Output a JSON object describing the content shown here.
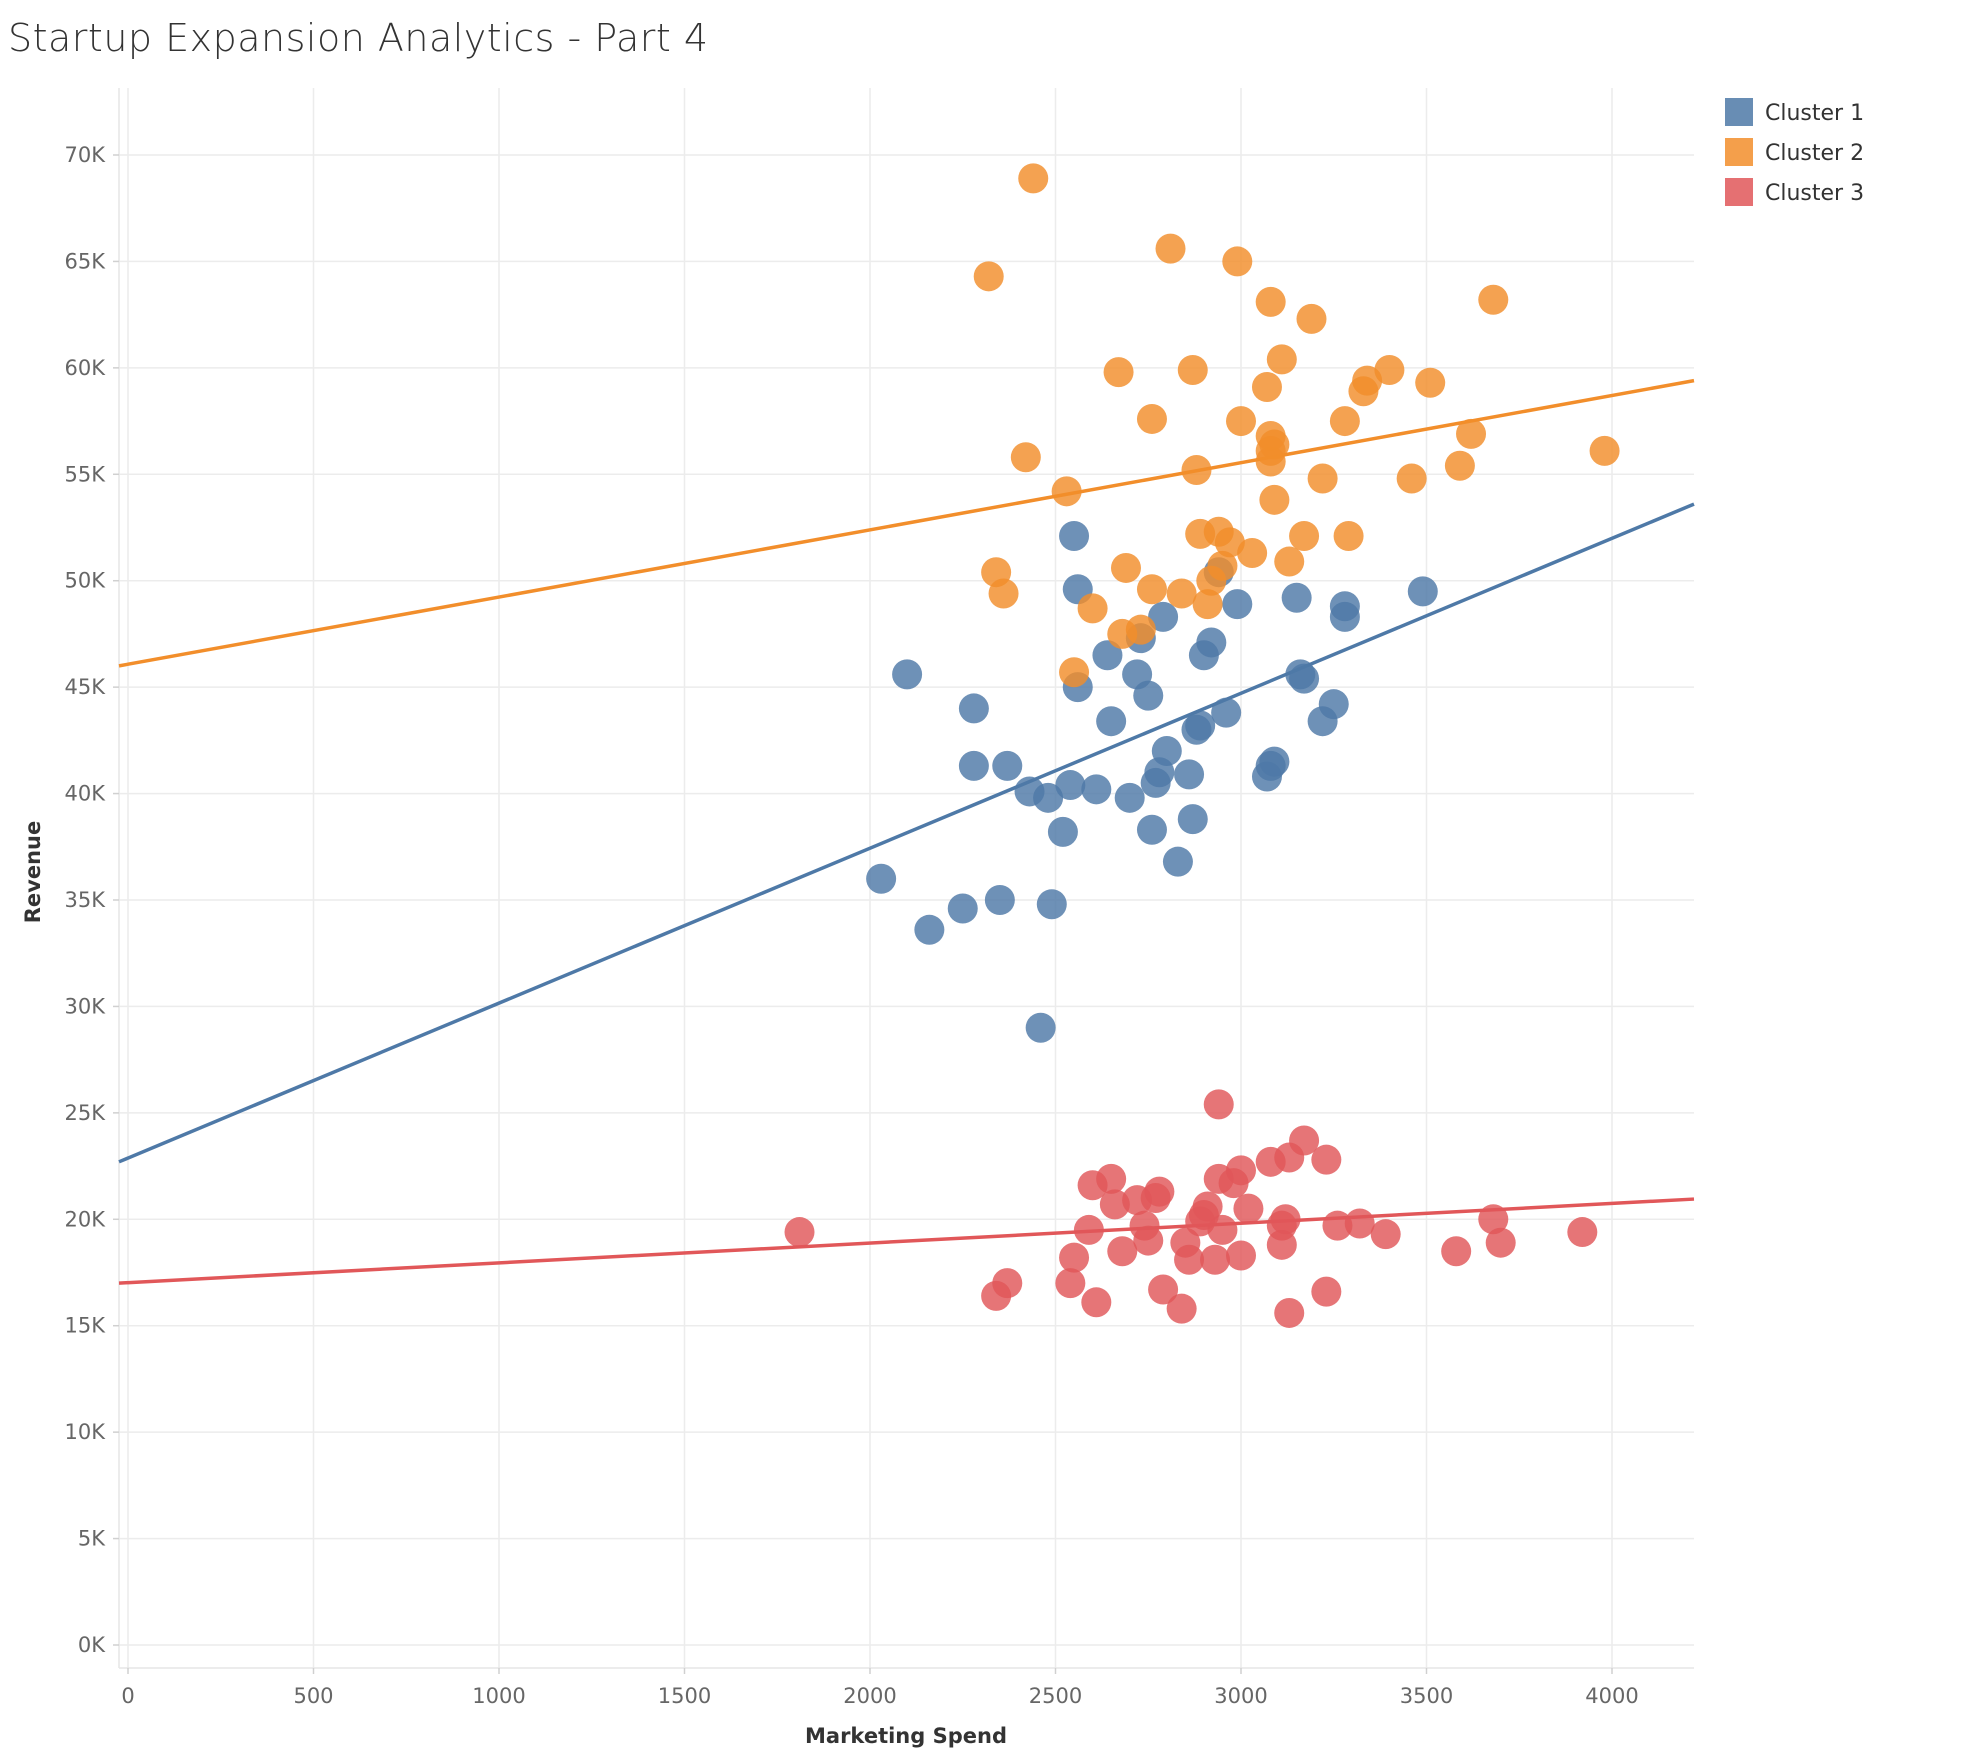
{
  "chart_data": {
    "type": "scatter",
    "title": "Startup Expansion Analytics - Part 4",
    "xlabel": "Marketing Spend",
    "ylabel": "Revenue",
    "xlim": [
      0,
      4220
    ],
    "ylim": [
      0,
      72000
    ],
    "x_ticks": [
      0,
      500,
      1000,
      1500,
      2000,
      2500,
      3000,
      3500,
      4000
    ],
    "x_tick_labels": [
      "0",
      "500",
      "1000",
      "1500",
      "2000",
      "2500",
      "3000",
      "3500",
      "4000"
    ],
    "y_ticks": [
      0,
      5000,
      10000,
      15000,
      20000,
      25000,
      30000,
      35000,
      40000,
      45000,
      50000,
      55000,
      60000,
      65000,
      70000
    ],
    "y_tick_labels": [
      "0K",
      "5K",
      "10K",
      "15K",
      "20K",
      "25K",
      "30K",
      "35K",
      "40K",
      "45K",
      "50K",
      "55K",
      "60K",
      "65K",
      "70K"
    ],
    "grid": true,
    "legend_position": "top-right",
    "series": [
      {
        "name": "Cluster 1",
        "color": "#4e79a7",
        "trendline": {
          "x": [
            0,
            4220
          ],
          "y": [
            22700,
            53600
          ]
        },
        "points": [
          [
            2030,
            36000
          ],
          [
            2100,
            45600
          ],
          [
            2160,
            33600
          ],
          [
            2250,
            34600
          ],
          [
            2280,
            44000
          ],
          [
            2280,
            41300
          ],
          [
            2350,
            35000
          ],
          [
            2370,
            41300
          ],
          [
            2430,
            40100
          ],
          [
            2460,
            29000
          ],
          [
            2480,
            39800
          ],
          [
            2490,
            34800
          ],
          [
            2520,
            38200
          ],
          [
            2540,
            40400
          ],
          [
            2550,
            52100
          ],
          [
            2560,
            49600
          ],
          [
            2560,
            45000
          ],
          [
            2610,
            40200
          ],
          [
            2640,
            46500
          ],
          [
            2650,
            43400
          ],
          [
            2700,
            39800
          ],
          [
            2720,
            45600
          ],
          [
            2730,
            47300
          ],
          [
            2750,
            44600
          ],
          [
            2760,
            38300
          ],
          [
            2770,
            40500
          ],
          [
            2780,
            41000
          ],
          [
            2790,
            48300
          ],
          [
            2800,
            42000
          ],
          [
            2830,
            36800
          ],
          [
            2860,
            40900
          ],
          [
            2870,
            38800
          ],
          [
            2880,
            43000
          ],
          [
            2890,
            43200
          ],
          [
            2900,
            46500
          ],
          [
            2920,
            47100
          ],
          [
            2940,
            50400
          ],
          [
            2960,
            43800
          ],
          [
            2990,
            48900
          ],
          [
            3070,
            40800
          ],
          [
            3080,
            41300
          ],
          [
            3090,
            41500
          ],
          [
            3150,
            49200
          ],
          [
            3160,
            45600
          ],
          [
            3170,
            45400
          ],
          [
            3220,
            43400
          ],
          [
            3250,
            44200
          ],
          [
            3280,
            48800
          ],
          [
            3280,
            48300
          ],
          [
            3490,
            49500
          ]
        ]
      },
      {
        "name": "Cluster 2",
        "color": "#f28e2b",
        "trendline": {
          "x": [
            0,
            4220
          ],
          "y": [
            46000,
            59400
          ]
        },
        "points": [
          [
            2320,
            64300
          ],
          [
            2340,
            50400
          ],
          [
            2360,
            49400
          ],
          [
            2420,
            55800
          ],
          [
            2440,
            68900
          ],
          [
            2530,
            54200
          ],
          [
            2550,
            45700
          ],
          [
            2600,
            48700
          ],
          [
            2670,
            59800
          ],
          [
            2680,
            47500
          ],
          [
            2690,
            50600
          ],
          [
            2730,
            47700
          ],
          [
            2760,
            57600
          ],
          [
            2760,
            49600
          ],
          [
            2810,
            65600
          ],
          [
            2840,
            49400
          ],
          [
            2870,
            59900
          ],
          [
            2880,
            55200
          ],
          [
            2890,
            52200
          ],
          [
            2910,
            48900
          ],
          [
            2920,
            50000
          ],
          [
            2940,
            52300
          ],
          [
            2950,
            50700
          ],
          [
            2970,
            51800
          ],
          [
            2990,
            65000
          ],
          [
            3000,
            57500
          ],
          [
            3030,
            51300
          ],
          [
            3070,
            59100
          ],
          [
            3080,
            63100
          ],
          [
            3080,
            56800
          ],
          [
            3080,
            56100
          ],
          [
            3080,
            55600
          ],
          [
            3090,
            56400
          ],
          [
            3090,
            53800
          ],
          [
            3110,
            60400
          ],
          [
            3130,
            50900
          ],
          [
            3170,
            52100
          ],
          [
            3190,
            62300
          ],
          [
            3220,
            54800
          ],
          [
            3280,
            57500
          ],
          [
            3290,
            52100
          ],
          [
            3330,
            58900
          ],
          [
            3340,
            59400
          ],
          [
            3400,
            59900
          ],
          [
            3460,
            54800
          ],
          [
            3510,
            59300
          ],
          [
            3590,
            55400
          ],
          [
            3620,
            56900
          ],
          [
            3680,
            63200
          ],
          [
            3980,
            56100
          ]
        ]
      },
      {
        "name": "Cluster 3",
        "color": "#e15759",
        "trendline": {
          "x": [
            0,
            4220
          ],
          "y": [
            17000,
            20950
          ]
        },
        "points": [
          [
            1810,
            19400
          ],
          [
            2340,
            16400
          ],
          [
            2370,
            17000
          ],
          [
            2540,
            17000
          ],
          [
            2550,
            18200
          ],
          [
            2590,
            19500
          ],
          [
            2600,
            21600
          ],
          [
            2610,
            16100
          ],
          [
            2650,
            21900
          ],
          [
            2660,
            20700
          ],
          [
            2680,
            18500
          ],
          [
            2720,
            20900
          ],
          [
            2740,
            19700
          ],
          [
            2750,
            19000
          ],
          [
            2770,
            21000
          ],
          [
            2780,
            21300
          ],
          [
            2790,
            16700
          ],
          [
            2840,
            15800
          ],
          [
            2850,
            18900
          ],
          [
            2860,
            18100
          ],
          [
            2890,
            19900
          ],
          [
            2900,
            20200
          ],
          [
            2910,
            20600
          ],
          [
            2930,
            18100
          ],
          [
            2940,
            21900
          ],
          [
            2940,
            25400
          ],
          [
            2950,
            19500
          ],
          [
            2980,
            21700
          ],
          [
            3000,
            22300
          ],
          [
            3000,
            18300
          ],
          [
            3020,
            20500
          ],
          [
            3080,
            22700
          ],
          [
            3110,
            19700
          ],
          [
            3110,
            18800
          ],
          [
            3120,
            20000
          ],
          [
            3130,
            15600
          ],
          [
            3130,
            22900
          ],
          [
            3170,
            23700
          ],
          [
            3230,
            16600
          ],
          [
            3230,
            22800
          ],
          [
            3260,
            19700
          ],
          [
            3320,
            19800
          ],
          [
            3390,
            19300
          ],
          [
            3580,
            18500
          ],
          [
            3680,
            20000
          ],
          [
            3700,
            18900
          ],
          [
            3920,
            19400
          ]
        ]
      }
    ]
  }
}
